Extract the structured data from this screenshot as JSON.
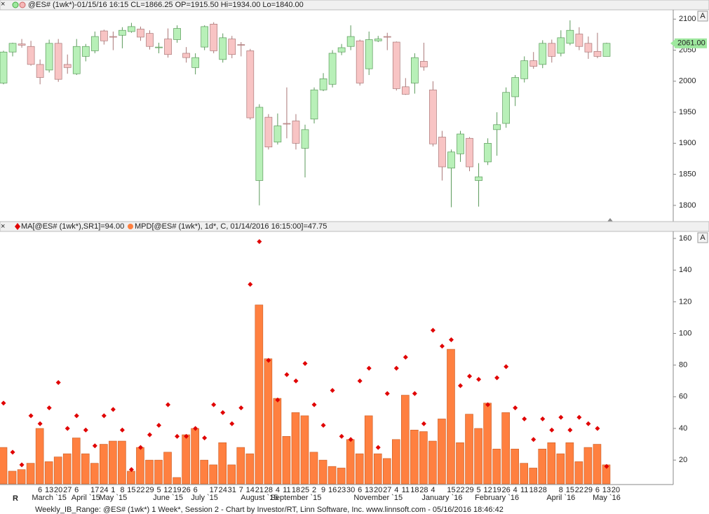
{
  "chart_data": [
    {
      "type": "candlestick",
      "title": "@ES# (1wk*)-01/15/16 16:15 CL=1866.25 OP=1915.50 Hi=1934.00 Lo=1840.00",
      "scale_button": "A",
      "open": [
        1997,
        2047,
        2060,
        2056,
        2027,
        2018,
        2061,
        2027,
        2012,
        2040,
        2049,
        2081,
        2072,
        2074,
        2080,
        2084,
        2077,
        2054,
        2068,
        2067,
        2045,
        2022,
        2055,
        2092,
        2035,
        2068,
        2059,
        2049,
        1840,
        1942,
        1902,
        1932,
        1936,
        1892,
        1939,
        1986,
        1995,
        2047,
        2056,
        2065,
        2020,
        2065,
        2072,
        2063,
        1991,
        1997,
        2032,
        1986,
        1910,
        1860,
        1883,
        1908,
        1840,
        1870,
        1922,
        1932,
        1975,
        2004,
        2033,
        2027,
        2061,
        2045,
        2061,
        2076,
        2061,
        2048,
        2040
      ],
      "high": [
        2049,
        2062,
        2068,
        2065,
        2035,
        2067,
        2068,
        2043,
        2068,
        2060,
        2080,
        2083,
        2080,
        2087,
        2094,
        2088,
        2082,
        2062,
        2085,
        2090,
        2055,
        2045,
        2090,
        2095,
        2077,
        2073,
        2063,
        2052,
        1963,
        1947,
        1948,
        1990,
        1947,
        1930,
        1990,
        2013,
        2050,
        2060,
        2090,
        2067,
        2080,
        2073,
        2078,
        2064,
        2005,
        2045,
        2062,
        2000,
        1920,
        1890,
        1920,
        1910,
        1868,
        1908,
        1950,
        1990,
        2010,
        2040,
        2047,
        2066,
        2067,
        2082,
        2098,
        2087,
        2072,
        2078,
        2062
      ],
      "low": [
        1995,
        2040,
        2054,
        2025,
        1995,
        2014,
        1999,
        2012,
        2010,
        2032,
        2045,
        2059,
        2050,
        2053,
        2078,
        2065,
        2051,
        2045,
        2038,
        2062,
        2030,
        2011,
        2050,
        2045,
        2030,
        2037,
        2040,
        1938,
        1800,
        1890,
        1898,
        1908,
        1890,
        1845,
        1932,
        1984,
        1990,
        2042,
        2050,
        1993,
        2010,
        2063,
        2050,
        1985,
        1978,
        1980,
        2017,
        1895,
        1840,
        1797,
        1870,
        1855,
        1798,
        1865,
        1880,
        1925,
        1960,
        1998,
        2020,
        2021,
        2030,
        2040,
        2058,
        2050,
        2036,
        2037,
        2040
      ],
      "close": [
        2047,
        2061,
        2058,
        2027,
        2006,
        2061,
        2003,
        2022,
        2056,
        2056,
        2072,
        2065,
        2071,
        2082,
        2088,
        2071,
        2056,
        2055,
        2043,
        2085,
        2038,
        2038,
        2088,
        2049,
        2070,
        2043,
        2058,
        1941,
        1958,
        1894,
        1928,
        1931,
        1900,
        1922,
        1986,
        2004,
        2045,
        2054,
        2072,
        1997,
        2067,
        2068,
        2071,
        1988,
        1979,
        2038,
        2023,
        1899,
        1862,
        1886,
        1915,
        1862,
        1846,
        1900,
        1930,
        1982,
        2006,
        2033,
        2024,
        2061,
        2040,
        2070,
        2082,
        2056,
        2047,
        2040,
        2061
      ],
      "up_color": "#b8f0b8",
      "down_color": "#f8c4c4",
      "last_price_label": "2061.00",
      "ylim": [
        1775,
        2115
      ],
      "yticks": [
        1800,
        1850,
        1900,
        1950,
        2000,
        2050,
        2100
      ]
    },
    {
      "type": "bar",
      "scale_button": "A",
      "series": [
        {
          "name": "MA[@ES# (1wk*),SR1]=94.00",
          "color": "#e00000",
          "mark": "diamond",
          "values": [
            56,
            25,
            17,
            48,
            43,
            53,
            69,
            40,
            48,
            39,
            29,
            48,
            52,
            39,
            14,
            28,
            36,
            42,
            55,
            35,
            35,
            40,
            34,
            55,
            50,
            43,
            53,
            131,
            158,
            83,
            58,
            74,
            70,
            81,
            55,
            42,
            64,
            35,
            33,
            70,
            78,
            28,
            62,
            78,
            85,
            62,
            43,
            102,
            92,
            96,
            67,
            73,
            71,
            55,
            72,
            79,
            53,
            46,
            33,
            46,
            39,
            47,
            39,
            47,
            43,
            40,
            16,
            null
          ]
        },
        {
          "name": "MPD[@ES# (1wk*), 1d*, C, 01/14/2016 16:15:00]=47.75",
          "color": "#ff8040",
          "mark": "bar",
          "values": [
            28,
            13,
            14,
            18,
            40,
            19,
            22,
            24,
            34,
            24,
            18,
            30,
            32,
            32,
            13,
            28,
            20,
            20,
            25,
            9,
            36,
            40,
            20,
            17,
            31,
            17,
            28,
            24,
            118,
            84,
            59,
            35,
            50,
            48,
            25,
            20,
            16,
            15,
            33,
            24,
            48,
            24,
            21,
            33,
            61,
            39,
            38,
            32,
            46,
            90,
            31,
            49,
            40,
            56,
            27,
            50,
            27,
            18,
            15,
            27,
            31,
            24,
            31,
            19,
            28,
            30,
            17,
            null
          ]
        }
      ],
      "categories": [
        null,
        null,
        null,
        null,
        "6",
        "13",
        "20",
        "27",
        "6",
        null,
        "17",
        "24",
        "1",
        "8",
        "15",
        "22",
        "29",
        "5",
        "12",
        "19",
        "26",
        "6",
        null,
        "17",
        "24",
        "31",
        "7",
        "14",
        "21",
        "28",
        "4",
        "11",
        "18",
        "25",
        "2",
        "9",
        "16",
        "23",
        "30",
        "6",
        "13",
        "20",
        "27",
        "4",
        "11",
        "18",
        "28",
        "4",
        null,
        "15",
        "22",
        "29",
        "5",
        "12",
        "19",
        "26",
        "4",
        "11",
        "18",
        "28",
        null,
        "8",
        "15",
        "22",
        "29",
        "6",
        "13",
        "20"
      ],
      "month_labels": [
        null,
        null,
        null,
        null,
        null,
        "March `15",
        null,
        null,
        null,
        "April `15",
        null,
        null,
        "May `15",
        null,
        null,
        null,
        null,
        null,
        "June `15",
        null,
        null,
        null,
        "July `15",
        null,
        null,
        null,
        null,
        null,
        "August `15",
        null,
        null,
        null,
        "September `15",
        null,
        null,
        null,
        null,
        null,
        null,
        null,
        null,
        "November `15",
        null,
        null,
        null,
        null,
        null,
        null,
        "January `16",
        null,
        null,
        null,
        null,
        null,
        "February `16",
        null,
        null,
        null,
        null,
        null,
        null,
        "April `16",
        null,
        null,
        null,
        null,
        "May `16",
        null
      ],
      "ylim": [
        5,
        164
      ],
      "yticks": [
        20,
        40,
        60,
        80,
        100,
        120,
        140,
        160
      ]
    }
  ],
  "logo": "R",
  "footer": "Weekly_IB_Range: @ES# (1wk*) 1 Week*, Session 2 - Chart by Investor/RT, Linn Software, Inc. www.linnsoft.com - 05/16/2016 18:46:42"
}
